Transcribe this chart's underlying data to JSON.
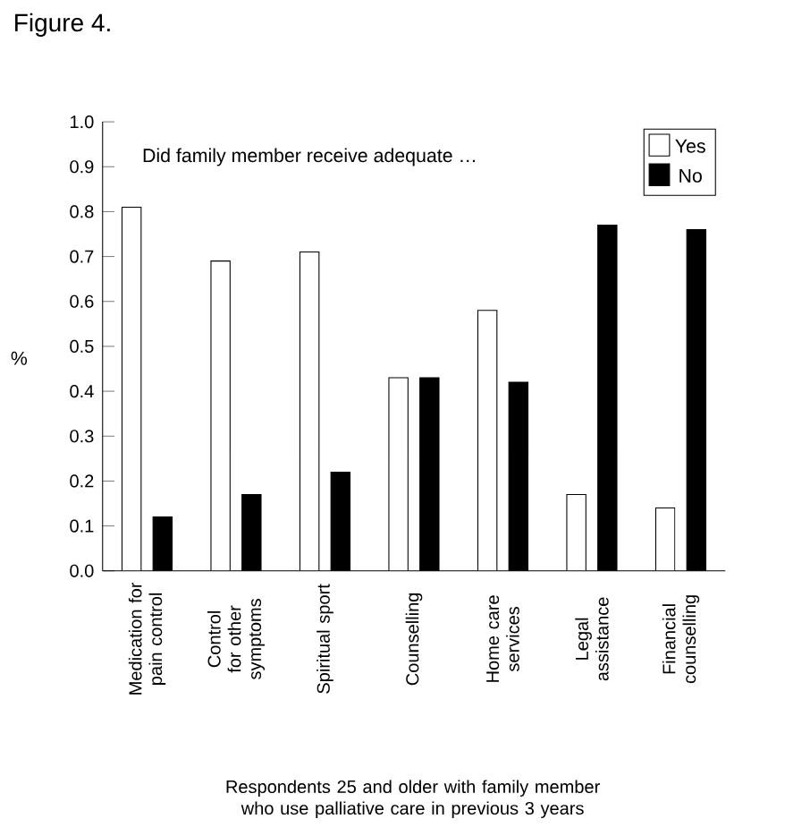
{
  "chart_data": {
    "type": "bar",
    "title": "Figure 4.",
    "ylabel": "%",
    "xlabel": "Respondents 25 and older with family member who use palliative care in previous 3 years",
    "annotations": [
      "Did family member receive adequate …"
    ],
    "categories": [
      "Medication for pain control",
      "Control for other symptoms",
      "Spiritual sport",
      "Counselling",
      "Home care services",
      "Legal assistance",
      "Financial counselling"
    ],
    "series": [
      {
        "name": "Yes",
        "color": "#ffffff",
        "values": [
          0.81,
          0.69,
          0.71,
          0.43,
          0.58,
          0.17,
          0.14
        ]
      },
      {
        "name": "No",
        "color": "#000000",
        "values": [
          0.12,
          0.17,
          0.22,
          0.43,
          0.42,
          0.77,
          0.76
        ]
      }
    ],
    "ylim": [
      0,
      1
    ],
    "yticks": [
      {
        "value": 0,
        "label": "0.0"
      },
      0.1,
      0.2,
      0.3,
      0.4,
      0.5,
      0.6,
      0.7,
      0.8,
      0.9,
      {
        "value": 1,
        "label": "1.0"
      }
    ],
    "legend": "top right",
    "grid": false
  }
}
